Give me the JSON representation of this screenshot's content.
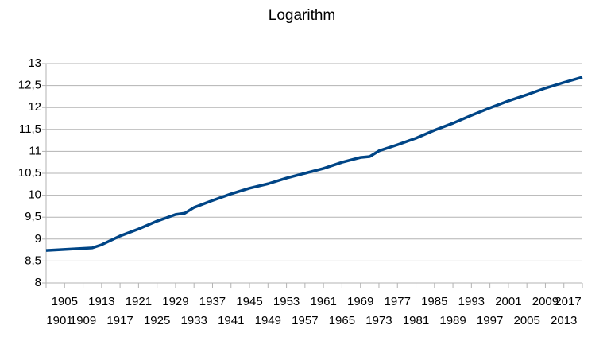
{
  "chart_data": {
    "type": "line",
    "title": "Logarithm",
    "x": [
      1901,
      1911,
      1913,
      1917,
      1921,
      1925,
      1929,
      1931,
      1933,
      1937,
      1941,
      1945,
      1949,
      1953,
      1957,
      1961,
      1965,
      1969,
      1971,
      1973,
      1977,
      1981,
      1985,
      1989,
      1993,
      1997,
      2001,
      2005,
      2009,
      2013,
      2017
    ],
    "series": [
      {
        "color": "#004586",
        "values": [
          8.74,
          8.8,
          8.87,
          9.07,
          9.23,
          9.41,
          9.56,
          9.59,
          9.72,
          9.88,
          10.03,
          10.16,
          10.26,
          10.39,
          10.5,
          10.61,
          10.75,
          10.86,
          10.88,
          11.01,
          11.15,
          11.3,
          11.48,
          11.64,
          11.82,
          11.99,
          12.15,
          12.29,
          12.44,
          12.57,
          12.69
        ]
      }
    ],
    "xlim": [
      1901,
      2017
    ],
    "xticks": [
      1901,
      1905,
      1909,
      1913,
      1917,
      1921,
      1925,
      1929,
      1933,
      1937,
      1941,
      1945,
      1949,
      1953,
      1957,
      1961,
      1965,
      1969,
      1973,
      1977,
      1981,
      1985,
      1989,
      1993,
      1997,
      2001,
      2005,
      2009,
      2013,
      2017
    ],
    "ylim": [
      8,
      13
    ],
    "yticks": [
      8,
      {
        "value": 8.5,
        "label": "8,5"
      },
      9,
      {
        "value": 9.5,
        "label": "9,5"
      },
      10,
      {
        "value": 10.5,
        "label": "10,5"
      },
      11,
      {
        "value": 11.5,
        "label": "11,5"
      },
      12,
      {
        "value": 12.5,
        "label": "12,5"
      },
      13
    ],
    "grid": true
  }
}
